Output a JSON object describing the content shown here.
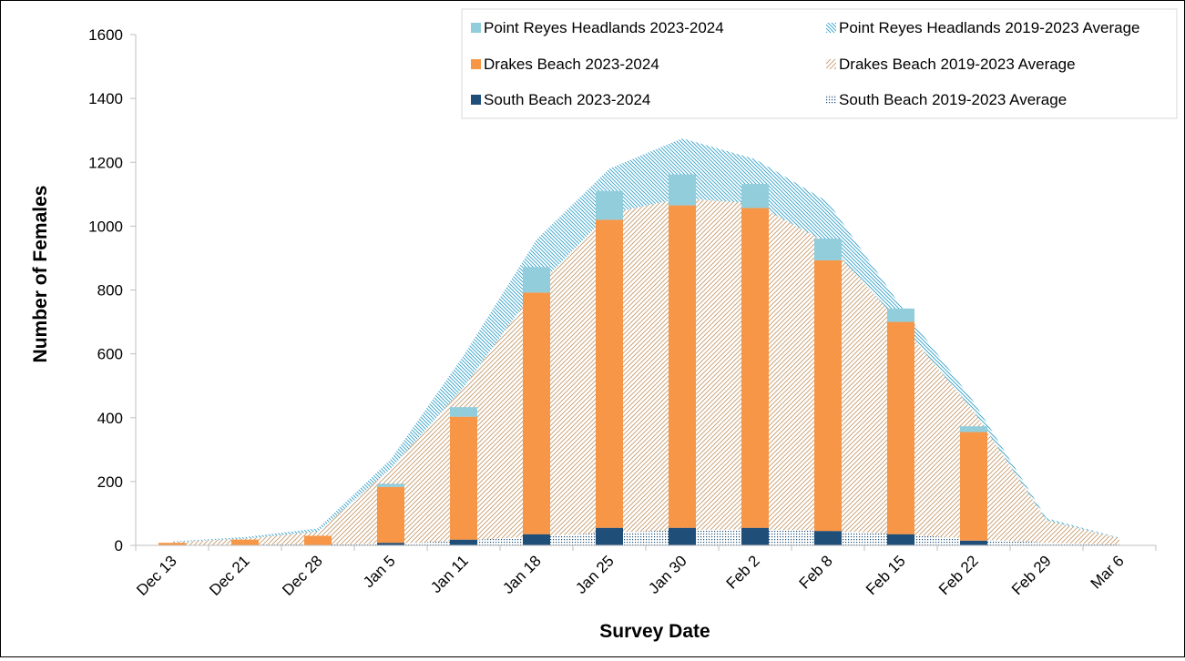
{
  "chart_data": {
    "type": "bar",
    "xlabel": "Survey Date",
    "ylabel": "Number of Females",
    "ylim": [
      0,
      1600
    ],
    "yticks": [
      0,
      200,
      400,
      600,
      800,
      1000,
      1200,
      1400,
      1600
    ],
    "grid": false,
    "legend_position": "top-right",
    "categories": [
      "Dec 13",
      "Dec 21",
      "Dec 28",
      "Jan 5",
      "Jan 11",
      "Jan 18",
      "Jan 25",
      "Jan 30",
      "Feb 2",
      "Feb 8",
      "Feb 15",
      "Feb 22",
      "Feb 29",
      "Mar 6"
    ],
    "bar_series": [
      {
        "name": "South Beach 2023-2024",
        "color": "#1f4e79",
        "values": [
          0,
          0,
          0,
          8,
          18,
          35,
          55,
          55,
          55,
          45,
          35,
          15,
          null,
          null
        ]
      },
      {
        "name": "Drakes Beach 2023-2024",
        "color": "#f79646",
        "values": [
          8,
          18,
          30,
          175,
          385,
          757,
          965,
          1010,
          1002,
          848,
          665,
          340,
          null,
          null
        ]
      },
      {
        "name": "Point Reyes Headlands 2023-2024",
        "color": "#92cddc",
        "values": [
          0,
          0,
          0,
          10,
          30,
          80,
          90,
          97,
          75,
          68,
          42,
          18,
          null,
          null
        ]
      }
    ],
    "average_series": [
      {
        "name": "South Beach 2019-2023 Average",
        "color": "#1f4e79",
        "pattern": "dots",
        "values": [
          1,
          2,
          3,
          5,
          15,
          28,
          40,
          48,
          50,
          46,
          35,
          20,
          8,
          2
        ]
      },
      {
        "name": "Drakes Beach 2019-2023 Average",
        "color": "#c59a6b",
        "pattern": "diagonal-up",
        "values": [
          9,
          19,
          40,
          235,
          480,
          780,
          1000,
          1040,
          1020,
          900,
          660,
          400,
          70,
          20
        ]
      },
      {
        "name": "Point Reyes Headlands 2019-2023 Average",
        "color": "#31a0c8",
        "pattern": "diagonal-down",
        "values": [
          2,
          5,
          10,
          30,
          100,
          150,
          140,
          187,
          140,
          130,
          55,
          30,
          7,
          2
        ]
      }
    ],
    "legend": [
      {
        "label": "Point Reyes Headlands 2023-2024",
        "kind": "bar",
        "color": "#92cddc"
      },
      {
        "label": "Point Reyes Headlands 2019-2023 Average",
        "kind": "area",
        "pattern": "diagonal-down",
        "color": "#31a0c8"
      },
      {
        "label": "Drakes Beach 2023-2024",
        "kind": "bar",
        "color": "#f79646"
      },
      {
        "label": "Drakes Beach 2019-2023 Average",
        "kind": "area",
        "pattern": "diagonal-up",
        "color": "#c59a6b"
      },
      {
        "label": "South Beach 2023-2024",
        "kind": "bar",
        "color": "#1f4e79"
      },
      {
        "label": "South Beach 2019-2023 Average",
        "kind": "area",
        "pattern": "dots",
        "color": "#1f4e79"
      }
    ]
  }
}
